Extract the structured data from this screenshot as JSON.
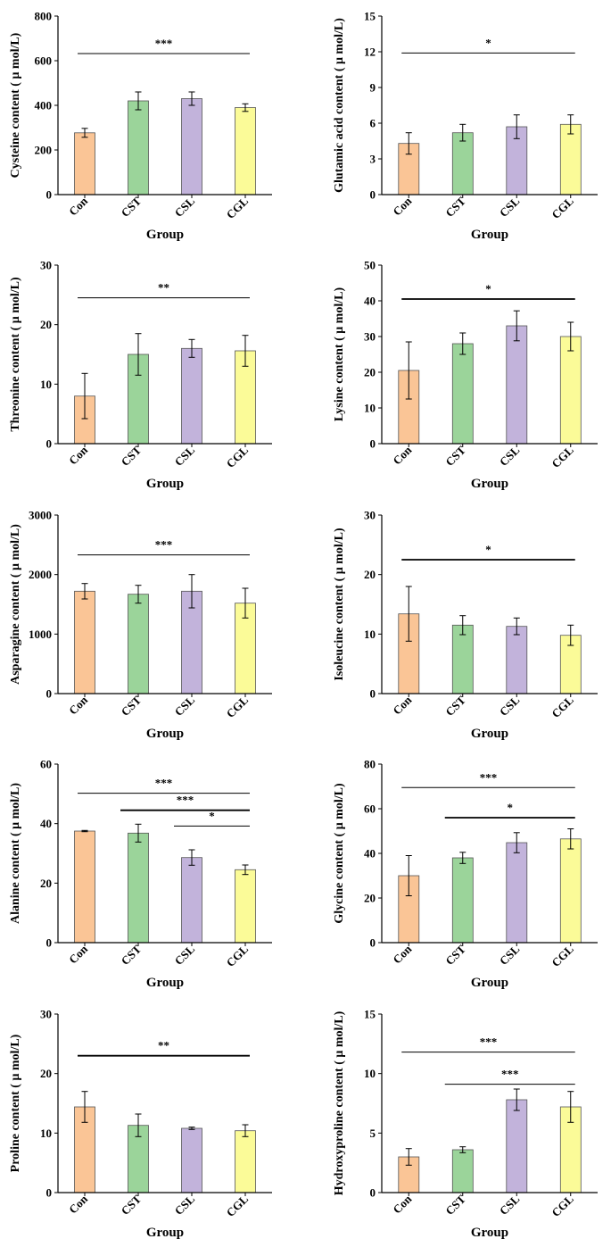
{
  "colors": {
    "con": "#FAC596",
    "cst": "#9BD49A",
    "csl": "#C2B3DB",
    "cgl": "#FBFB98",
    "axis": "#000000"
  },
  "chart_data": [
    {
      "type": "bar",
      "ylabel": "Cysteine content ( μ mol/L)",
      "xlabel": "Group",
      "categories": [
        "Con",
        "CST",
        "CSL",
        "CGL"
      ],
      "values": [
        277,
        420,
        430,
        390
      ],
      "errors": [
        20,
        40,
        30,
        17
      ],
      "ylim": [
        0,
        800
      ],
      "yticks": [
        "0",
        "200",
        "400",
        "600",
        "800"
      ],
      "significance": [
        {
          "from": 0,
          "to": 3,
          "y": 632,
          "label": "***",
          "weight": "thin"
        }
      ]
    },
    {
      "type": "bar",
      "ylabel": "Glutamic acid content ( μ mol/L)",
      "xlabel": "Group",
      "categories": [
        "Con",
        "CST",
        "CSL",
        "CGL"
      ],
      "values": [
        4.3,
        5.2,
        5.7,
        5.9
      ],
      "errors": [
        0.9,
        0.7,
        1.0,
        0.8
      ],
      "ylim": [
        0,
        15
      ],
      "yticks": [
        "0",
        "3",
        "6",
        "9",
        "12",
        "15"
      ],
      "significance": [
        {
          "from": 0,
          "to": 3,
          "y": 11.9,
          "label": "*",
          "weight": "thin"
        }
      ]
    },
    {
      "type": "bar",
      "ylabel": "Threonine content ( μ mol/L)",
      "xlabel": "Group",
      "categories": [
        "Con",
        "CST",
        "CSL",
        "CGL"
      ],
      "values": [
        8.0,
        15.0,
        16.0,
        15.6
      ],
      "errors": [
        3.8,
        3.5,
        1.5,
        2.6
      ],
      "ylim": [
        0,
        30
      ],
      "yticks": [
        "0",
        "10",
        "20",
        "30"
      ],
      "significance": [
        {
          "from": 0,
          "to": 3,
          "y": 24.5,
          "label": "**",
          "weight": "thin"
        }
      ]
    },
    {
      "type": "bar",
      "ylabel": "Lysine content ( μ mol/L)",
      "xlabel": "Group",
      "categories": [
        "Con",
        "CST",
        "CSL",
        "CGL"
      ],
      "values": [
        20.5,
        28.0,
        33.0,
        30.0
      ],
      "errors": [
        8.0,
        3.0,
        4.2,
        4.0
      ],
      "ylim": [
        0,
        50
      ],
      "yticks": [
        "0",
        "10",
        "20",
        "30",
        "40",
        "50"
      ],
      "significance": [
        {
          "from": 0,
          "to": 3,
          "y": 40.5,
          "label": "*",
          "weight": "thick"
        }
      ]
    },
    {
      "type": "bar",
      "ylabel": "Asparagine content ( μ mol/L)",
      "xlabel": "Group",
      "categories": [
        "Con",
        "CST",
        "CSL",
        "CGL"
      ],
      "values": [
        1720,
        1670,
        1720,
        1520
      ],
      "errors": [
        130,
        150,
        280,
        250
      ],
      "ylim": [
        0,
        3000
      ],
      "yticks": [
        "0",
        "1000",
        "2000",
        "3000"
      ],
      "significance": [
        {
          "from": 0,
          "to": 3,
          "y": 2330,
          "label": "***",
          "weight": "thin"
        }
      ]
    },
    {
      "type": "bar",
      "ylabel": "Isoleucine content ( μ mol/L)",
      "xlabel": "Group",
      "categories": [
        "Con",
        "CST",
        "CSL",
        "CGL"
      ],
      "values": [
        13.4,
        11.5,
        11.3,
        9.8
      ],
      "errors": [
        4.6,
        1.6,
        1.4,
        1.7
      ],
      "ylim": [
        0,
        30
      ],
      "yticks": [
        "0",
        "10",
        "20",
        "30"
      ],
      "significance": [
        {
          "from": 0,
          "to": 3,
          "y": 22.5,
          "label": "*",
          "weight": "thick"
        }
      ]
    },
    {
      "type": "bar",
      "ylabel": "Alanine content ( μ mol/L)",
      "xlabel": "Group",
      "categories": [
        "Con",
        "CST",
        "CSL",
        "CGL"
      ],
      "values": [
        37.5,
        36.8,
        28.6,
        24.5
      ],
      "errors": [
        0.2,
        3.0,
        2.6,
        1.6
      ],
      "ylim": [
        0,
        60
      ],
      "yticks": [
        "0",
        "20",
        "40",
        "60"
      ],
      "significance": [
        {
          "from": 0,
          "to": 3,
          "y": 50.2,
          "label": "***",
          "weight": "thin"
        },
        {
          "from": 1,
          "to": 3,
          "y": 44.5,
          "label": "***",
          "weight": "thick"
        },
        {
          "from": 2,
          "to": 3,
          "y": 39.2,
          "label": "*",
          "weight": "thin"
        }
      ]
    },
    {
      "type": "bar",
      "ylabel": "Glycine content ( μ mol/L)",
      "xlabel": "Group",
      "categories": [
        "Con",
        "CST",
        "CSL",
        "CGL"
      ],
      "values": [
        30.0,
        38.0,
        44.8,
        46.5
      ],
      "errors": [
        9.0,
        2.5,
        4.5,
        4.5
      ],
      "ylim": [
        0,
        80
      ],
      "yticks": [
        "0",
        "20",
        "40",
        "60",
        "80"
      ],
      "significance": [
        {
          "from": 0,
          "to": 3,
          "y": 69.5,
          "label": "***",
          "weight": "thin"
        },
        {
          "from": 1,
          "to": 3,
          "y": 56.0,
          "label": "*",
          "weight": "thick"
        }
      ]
    },
    {
      "type": "bar",
      "ylabel": "Proline content ( μ mol/L)",
      "xlabel": "Group",
      "categories": [
        "Con",
        "CST",
        "CSL",
        "CGL"
      ],
      "values": [
        14.4,
        11.3,
        10.8,
        10.4
      ],
      "errors": [
        2.6,
        1.9,
        0.2,
        1.0
      ],
      "ylim": [
        0,
        30
      ],
      "yticks": [
        "0",
        "10",
        "20",
        "30"
      ],
      "significance": [
        {
          "from": 0,
          "to": 3,
          "y": 23.0,
          "label": "**",
          "weight": "thick"
        }
      ]
    },
    {
      "type": "bar",
      "ylabel": "Hydroxyproline content ( μ mol/L)",
      "xlabel": "Group",
      "categories": [
        "Con",
        "CST",
        "CSL",
        "CGL"
      ],
      "values": [
        3.0,
        3.6,
        7.8,
        7.2
      ],
      "errors": [
        0.7,
        0.25,
        0.9,
        1.3
      ],
      "ylim": [
        0,
        15
      ],
      "yticks": [
        "0",
        "5",
        "10",
        "15"
      ],
      "significance": [
        {
          "from": 0,
          "to": 3,
          "y": 11.8,
          "label": "***",
          "weight": "thin"
        },
        {
          "from": 1,
          "to": 3,
          "y": 9.1,
          "label": "***",
          "weight": "thin"
        }
      ]
    }
  ]
}
